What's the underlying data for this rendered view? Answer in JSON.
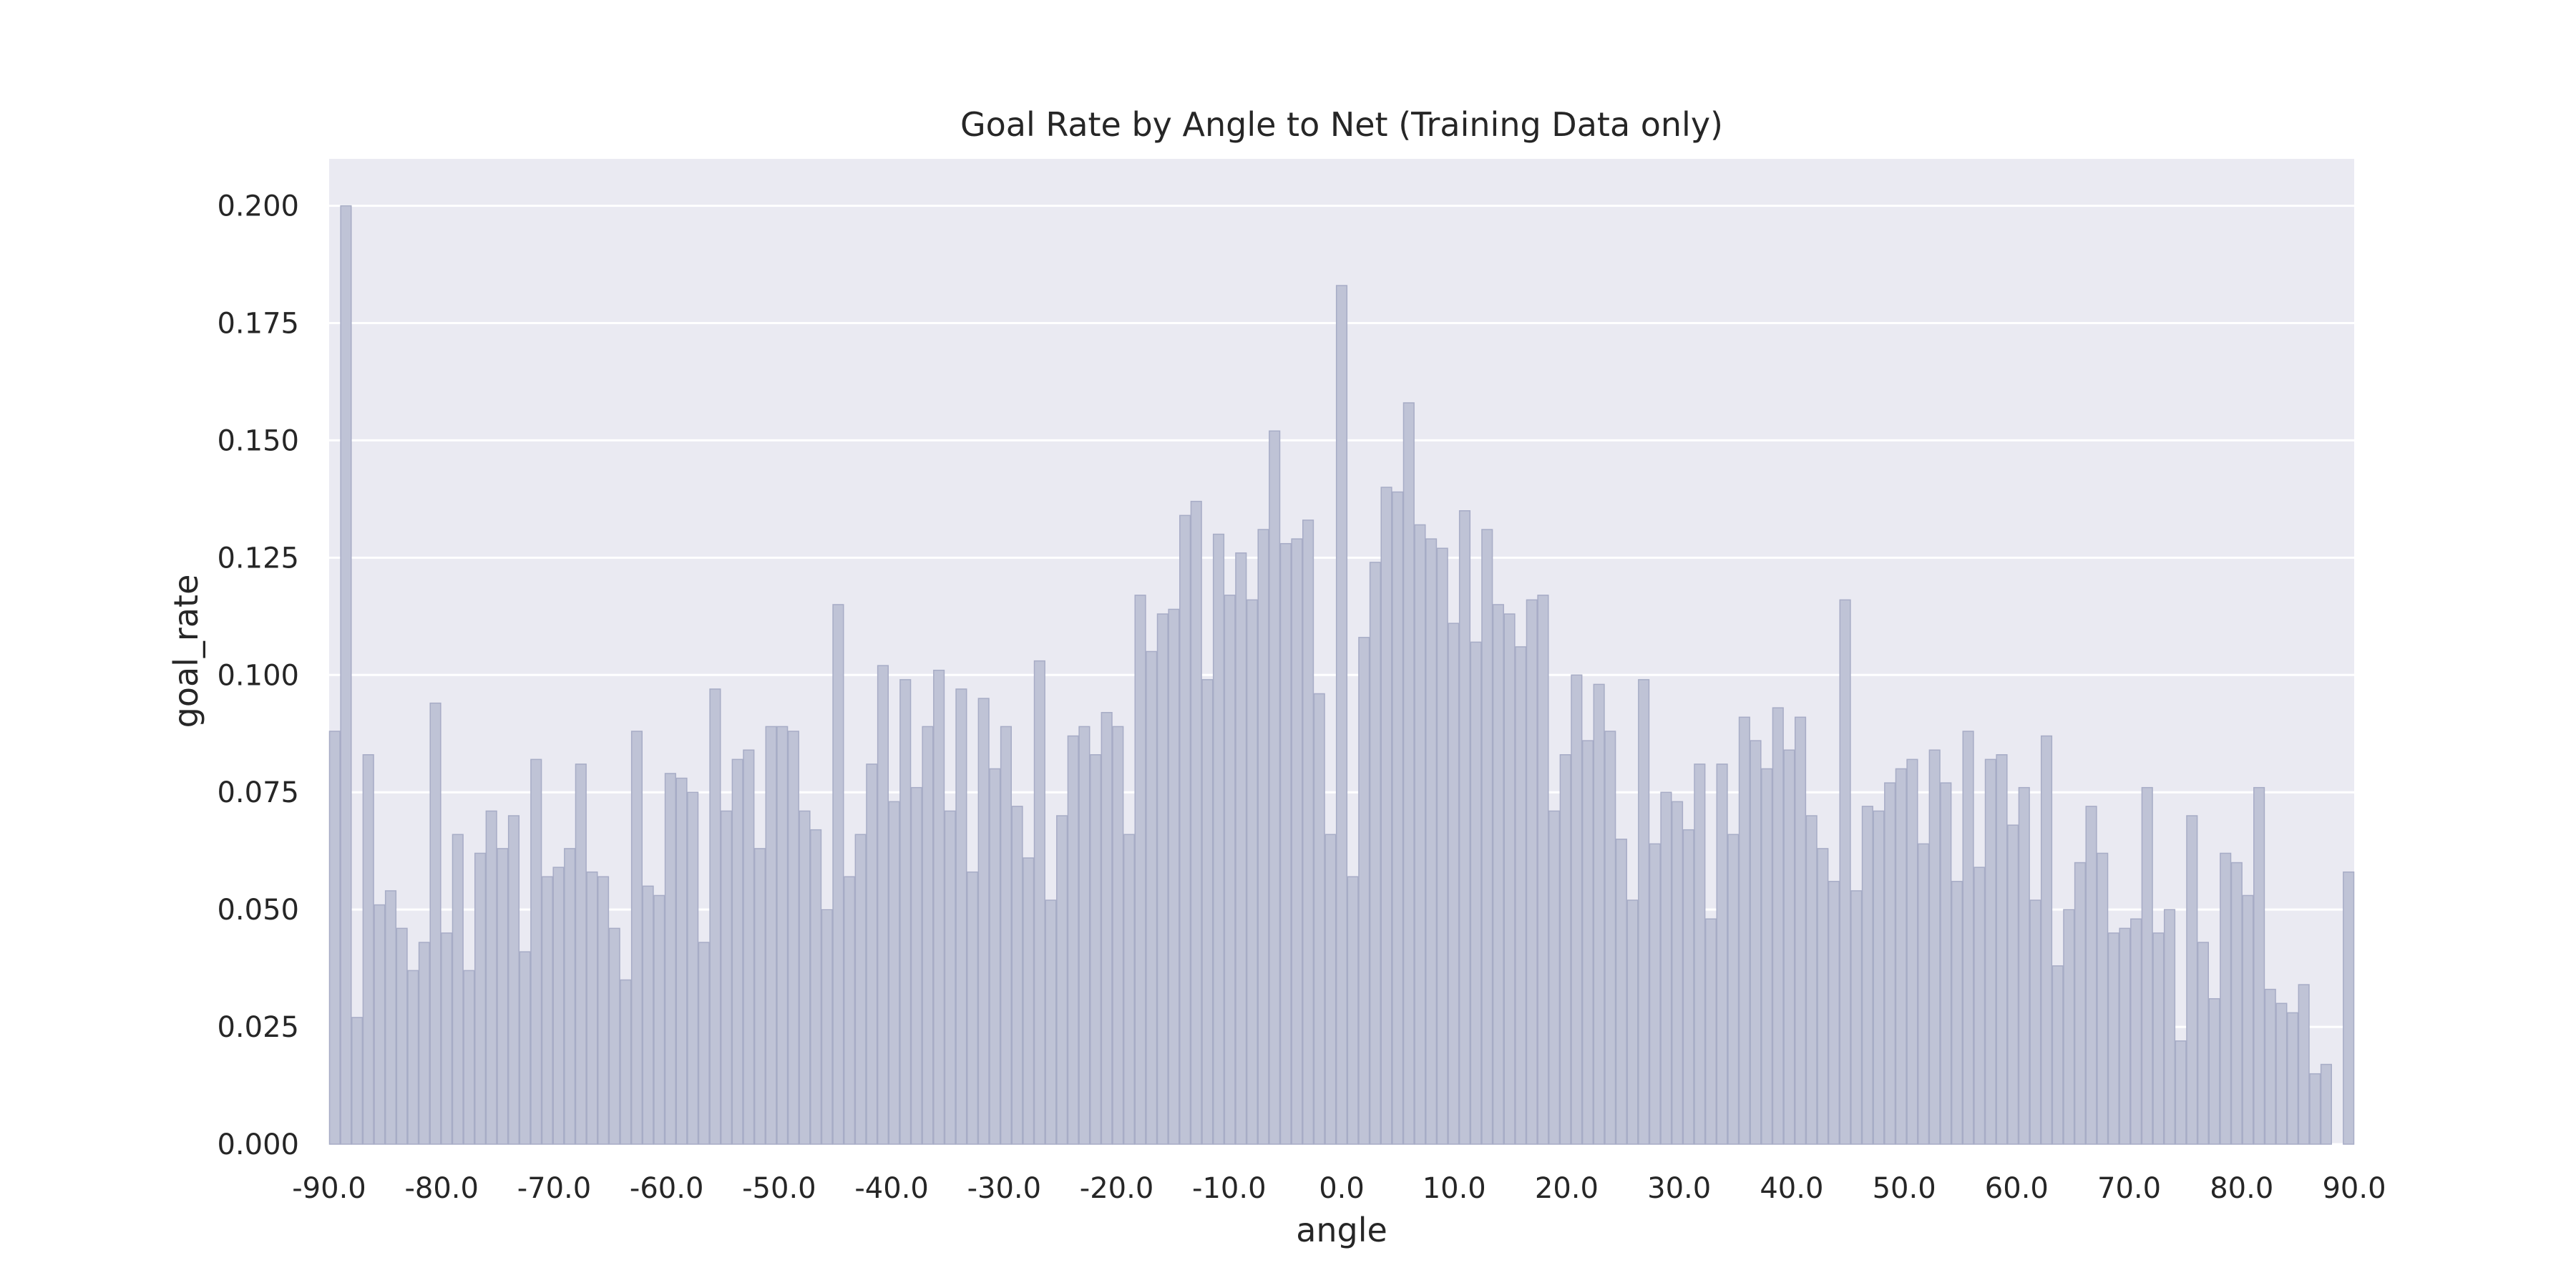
{
  "chart_data": {
    "type": "bar",
    "title": "Goal Rate by Angle to Net (Training Data only)",
    "xlabel": "angle",
    "ylabel": "goal_rate",
    "ylim": [
      0,
      0.21
    ],
    "xlim": [
      -90,
      90
    ],
    "grid": true,
    "y_ticks": [
      "0.000",
      "0.025",
      "0.050",
      "0.075",
      "0.100",
      "0.125",
      "0.150",
      "0.175",
      "0.200"
    ],
    "x_ticks": [
      "-90.0",
      "-80.0",
      "-70.0",
      "-60.0",
      "-50.0",
      "-40.0",
      "-30.0",
      "-20.0",
      "-10.0",
      "0.0",
      "10.0",
      "20.0",
      "30.0",
      "40.0",
      "50.0",
      "60.0",
      "70.0",
      "80.0",
      "90.0"
    ],
    "x_start": -90,
    "bin_width": 1,
    "values": [
      0.088,
      0.2,
      0.027,
      0.083,
      0.051,
      0.054,
      0.046,
      0.037,
      0.043,
      0.094,
      0.045,
      0.066,
      0.037,
      0.062,
      0.071,
      0.063,
      0.07,
      0.041,
      0.082,
      0.057,
      0.059,
      0.063,
      0.081,
      0.058,
      0.057,
      0.046,
      0.035,
      0.088,
      0.055,
      0.053,
      0.079,
      0.078,
      0.075,
      0.043,
      0.097,
      0.071,
      0.082,
      0.084,
      0.063,
      0.089,
      0.089,
      0.088,
      0.071,
      0.067,
      0.05,
      0.115,
      0.057,
      0.066,
      0.081,
      0.102,
      0.073,
      0.099,
      0.076,
      0.089,
      0.101,
      0.071,
      0.097,
      0.058,
      0.095,
      0.08,
      0.089,
      0.072,
      0.061,
      0.103,
      0.052,
      0.07,
      0.087,
      0.089,
      0.083,
      0.092,
      0.089,
      0.066,
      0.117,
      0.105,
      0.113,
      0.114,
      0.134,
      0.137,
      0.099,
      0.13,
      0.117,
      0.126,
      0.116,
      0.131,
      0.152,
      0.128,
      0.129,
      0.133,
      0.096,
      0.066,
      0.183,
      0.057,
      0.108,
      0.124,
      0.14,
      0.139,
      0.158,
      0.132,
      0.129,
      0.127,
      0.111,
      0.135,
      0.107,
      0.131,
      0.115,
      0.113,
      0.106,
      0.116,
      0.117,
      0.071,
      0.083,
      0.1,
      0.086,
      0.098,
      0.088,
      0.065,
      0.052,
      0.099,
      0.064,
      0.075,
      0.073,
      0.067,
      0.081,
      0.048,
      0.081,
      0.066,
      0.091,
      0.086,
      0.08,
      0.093,
      0.084,
      0.091,
      0.07,
      0.063,
      0.056,
      0.116,
      0.054,
      0.072,
      0.071,
      0.077,
      0.08,
      0.082,
      0.064,
      0.084,
      0.077,
      0.056,
      0.088,
      0.059,
      0.082,
      0.083,
      0.068,
      0.076,
      0.052,
      0.087,
      0.038,
      0.05,
      0.06,
      0.072,
      0.062,
      0.045,
      0.046,
      0.048,
      0.076,
      0.045,
      0.05,
      0.022,
      0.07,
      0.043,
      0.031,
      0.062,
      0.06,
      0.053,
      0.076,
      0.033,
      0.03,
      0.028,
      0.034,
      0.015,
      0.017,
      0.0,
      0.058
    ],
    "colors": {
      "background": "#eaeaf2",
      "bar_fill": "#bfc3d6",
      "bar_edge": "#a7acc6",
      "grid": "#ffffff"
    }
  }
}
